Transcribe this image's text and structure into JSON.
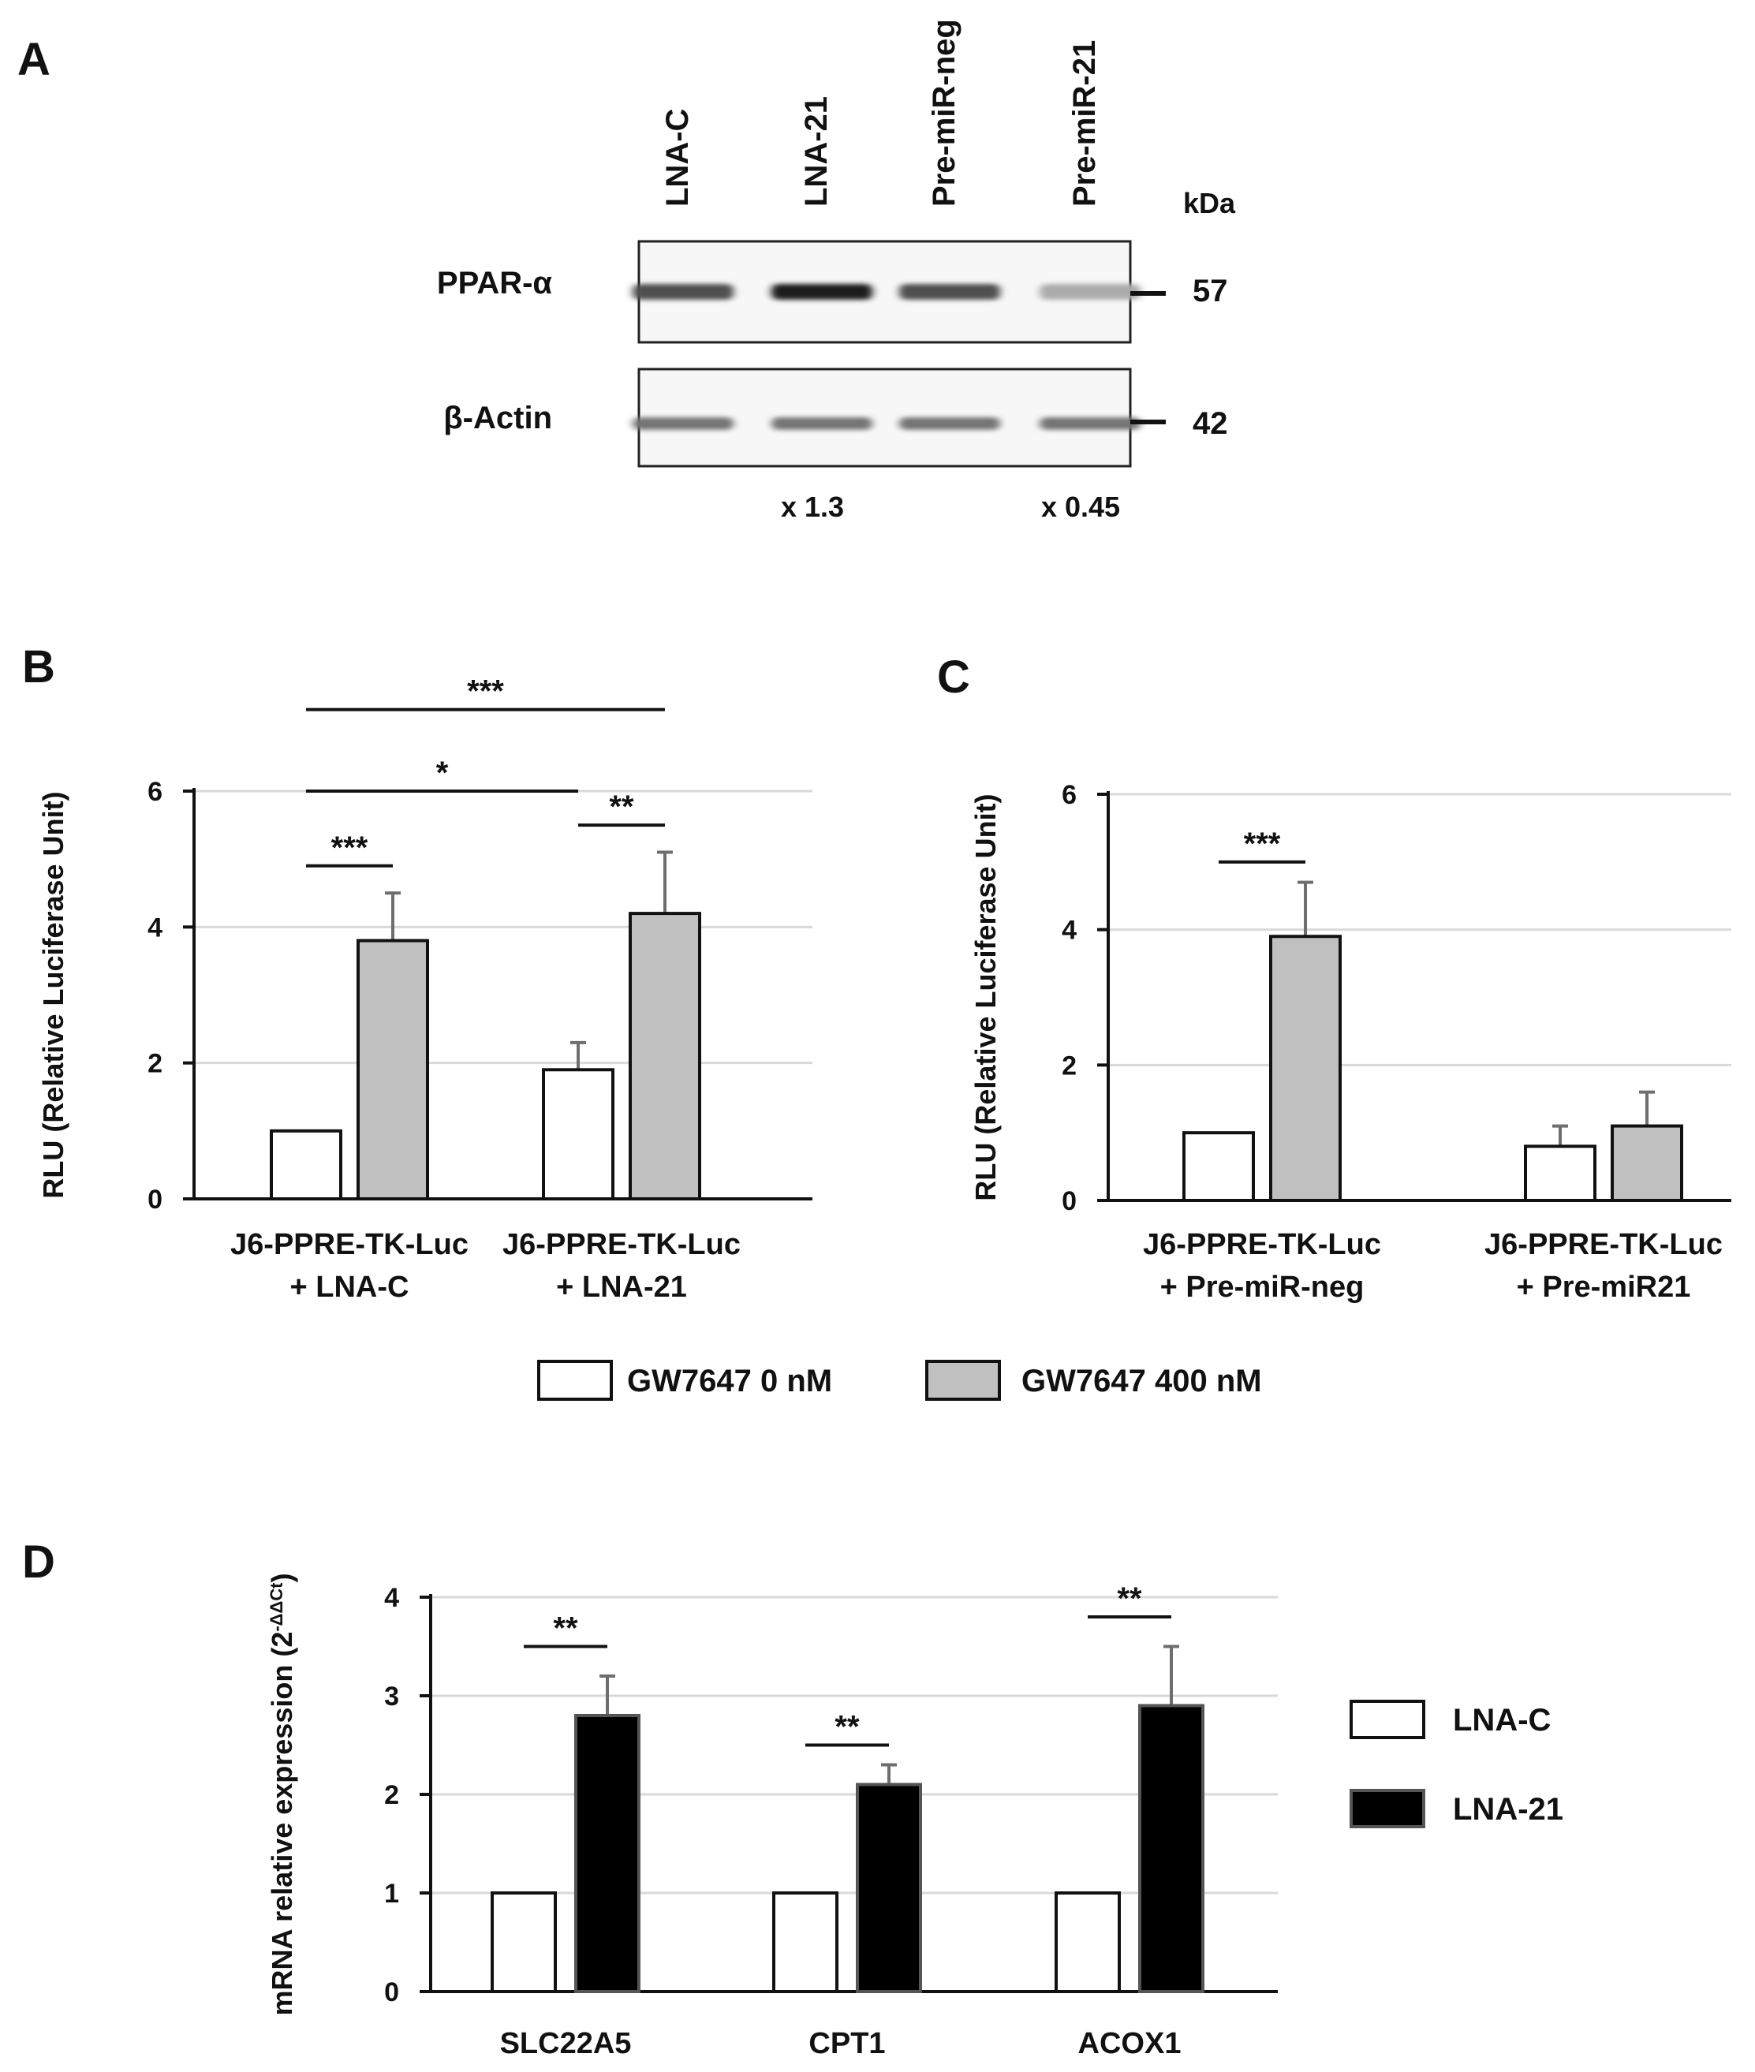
{
  "panel_labels": {
    "a": "A",
    "b": "B",
    "c": "C",
    "d": "D"
  },
  "western_blot": {
    "lanes": [
      "LNA-C",
      "LNA-21",
      "Pre-miR-neg",
      "Pre-miR-21"
    ],
    "kda_label": "kDa",
    "rows": [
      {
        "label": "PPAR-α",
        "kda": "57",
        "intensity": [
          0.72,
          0.95,
          0.72,
          0.3
        ]
      },
      {
        "label": "β-Actin",
        "kda": "42",
        "intensity": [
          0.55,
          0.55,
          0.55,
          0.55
        ]
      }
    ],
    "fold_changes": [
      {
        "lane": 2,
        "text": "x 1.3"
      },
      {
        "lane": 4,
        "text": "x 0.45"
      }
    ]
  },
  "legend_bc": {
    "items": [
      {
        "label": "GW7647 0 nM",
        "color": "#ffffff"
      },
      {
        "label": "GW7647 400 nM",
        "color": "#c0c0c0"
      }
    ]
  },
  "legend_d": {
    "items": [
      {
        "label": "LNA-C",
        "color": "#ffffff"
      },
      {
        "label": "LNA-21",
        "color": "#000000"
      }
    ]
  },
  "chart_data": [
    {
      "panel": "B",
      "type": "bar",
      "ylabel": "RLU (Relative Luciferase Unit)",
      "ylim": [
        0,
        6
      ],
      "yticks": [
        0,
        2,
        4,
        6
      ],
      "grid": true,
      "categories": [
        {
          "line1": "J6-PPRE-TK-Luc",
          "line2": "+ LNA-C"
        },
        {
          "line1": "J6-PPRE-TK-Luc",
          "line2": "+ LNA-21"
        }
      ],
      "series": [
        {
          "name": "GW7647 0 nM",
          "color": "#ffffff",
          "values": [
            1.0,
            1.9
          ],
          "errors": [
            0.0,
            0.4
          ]
        },
        {
          "name": "GW7647 400 nM",
          "color": "#c0c0c0",
          "values": [
            3.8,
            4.2
          ],
          "errors": [
            0.7,
            0.9
          ]
        }
      ],
      "significance": [
        {
          "from": {
            "cat": 0,
            "ser": 0
          },
          "to": {
            "cat": 0,
            "ser": 1
          },
          "y": 4.9,
          "text": "***"
        },
        {
          "from": {
            "cat": 1,
            "ser": 0
          },
          "to": {
            "cat": 1,
            "ser": 1
          },
          "y": 5.5,
          "text": "**"
        },
        {
          "from": {
            "cat": 0,
            "ser": 0
          },
          "to": {
            "cat": 1,
            "ser": 0
          },
          "y": 6.0,
          "text": "*"
        },
        {
          "from": {
            "cat": 0,
            "ser": 0
          },
          "to": {
            "cat": 1,
            "ser": 1
          },
          "y": 7.2,
          "text": "***"
        }
      ]
    },
    {
      "panel": "C",
      "type": "bar",
      "ylabel": "RLU (Relative Luciferase Unit)",
      "ylim": [
        0,
        6
      ],
      "yticks": [
        0,
        2,
        4,
        6
      ],
      "grid": true,
      "categories": [
        {
          "line1": "J6-PPRE-TK-Luc",
          "line2": "+ Pre-miR-neg"
        },
        {
          "line1": "J6-PPRE-TK-Luc",
          "line2": "+ Pre-miR21"
        }
      ],
      "series": [
        {
          "name": "GW7647 0 nM",
          "color": "#ffffff",
          "values": [
            1.0,
            0.8
          ],
          "errors": [
            0.0,
            0.3
          ]
        },
        {
          "name": "GW7647 400 nM",
          "color": "#c0c0c0",
          "values": [
            3.9,
            1.1
          ],
          "errors": [
            0.8,
            0.5
          ]
        }
      ],
      "significance": [
        {
          "from": {
            "cat": 0,
            "ser": 0
          },
          "to": {
            "cat": 0,
            "ser": 1
          },
          "y": 5.0,
          "text": "***"
        }
      ]
    },
    {
      "panel": "D",
      "type": "bar",
      "ylabel": "mRNA relative expression (2",
      "ylabel_sup": "-ΔΔCt",
      "ylabel_close": ")",
      "ylim": [
        0,
        4
      ],
      "yticks": [
        0,
        1,
        2,
        3,
        4
      ],
      "grid": true,
      "categories": [
        {
          "line1": "SLC22A5",
          "line2": ""
        },
        {
          "line1": "CPT1",
          "line2": ""
        },
        {
          "line1": "ACOX1",
          "line2": ""
        }
      ],
      "series": [
        {
          "name": "LNA-C",
          "color": "#ffffff",
          "values": [
            1.0,
            1.0,
            1.0
          ],
          "errors": [
            0.0,
            0.0,
            0.0
          ]
        },
        {
          "name": "LNA-21",
          "color": "#000000",
          "values": [
            2.8,
            2.1,
            2.9
          ],
          "errors": [
            0.4,
            0.2,
            0.6
          ]
        }
      ],
      "significance": [
        {
          "from": {
            "cat": 0,
            "ser": 0
          },
          "to": {
            "cat": 0,
            "ser": 1
          },
          "y": 3.5,
          "text": "**"
        },
        {
          "from": {
            "cat": 1,
            "ser": 0
          },
          "to": {
            "cat": 1,
            "ser": 1
          },
          "y": 2.5,
          "text": "**"
        },
        {
          "from": {
            "cat": 2,
            "ser": 0
          },
          "to": {
            "cat": 2,
            "ser": 1
          },
          "y": 3.8,
          "text": "**"
        }
      ]
    }
  ]
}
